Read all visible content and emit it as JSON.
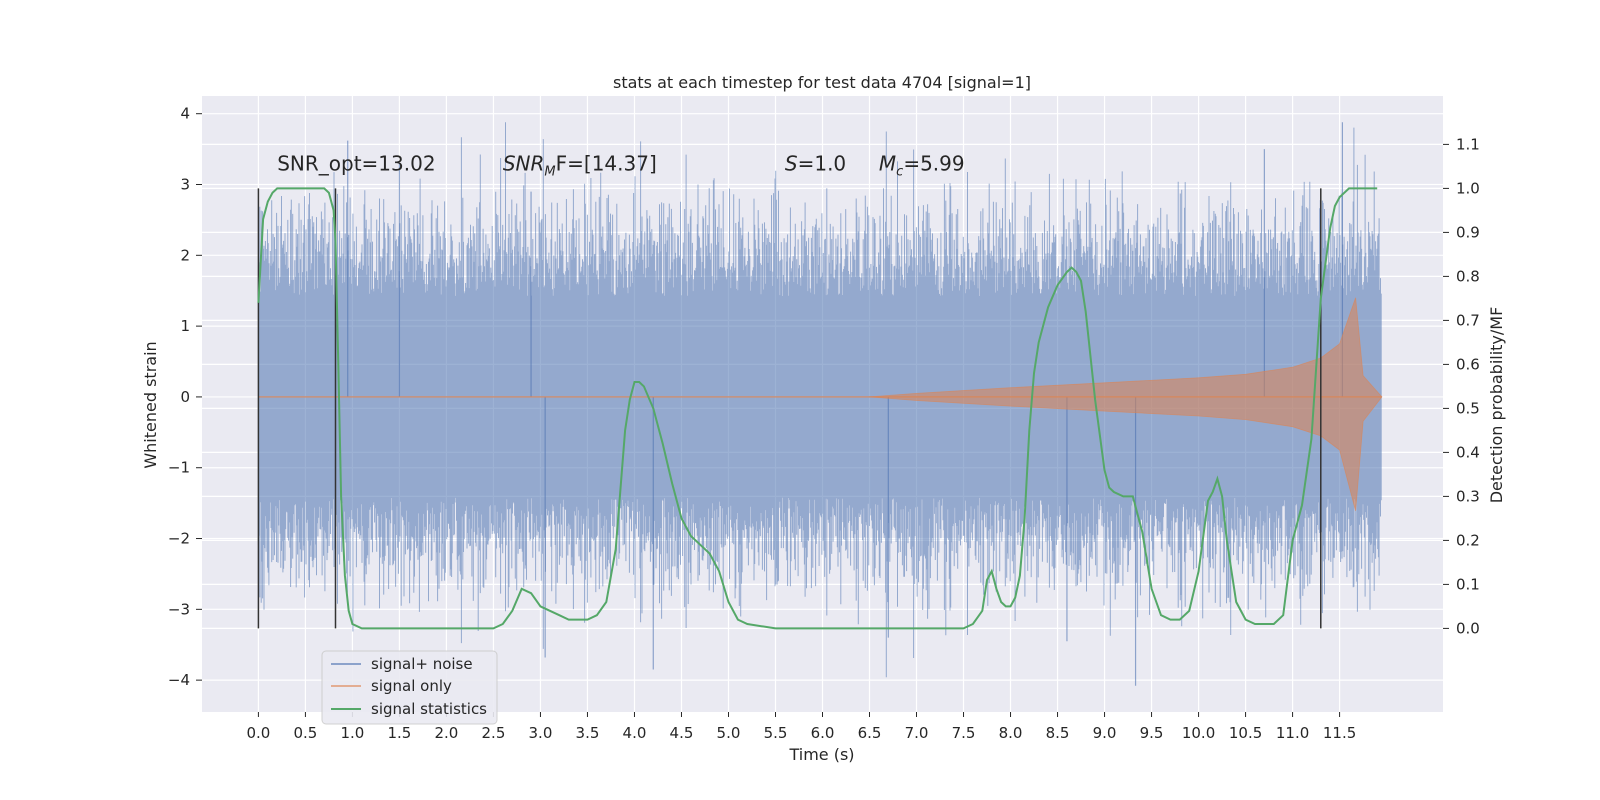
{
  "chart_data": {
    "type": "line",
    "title": "stats at each timestep for test data 4704 [signal=1]",
    "xlabel": "Time (s)",
    "ylabel": "Whitened strain",
    "y2label": "Detection probability/MF",
    "xlim": [
      -0.6,
      12.6
    ],
    "ylim": [
      -4.45,
      4.25
    ],
    "y2lim": [
      -0.19,
      1.21
    ],
    "x_ticks": [
      "0.0",
      "0.5",
      "1.0",
      "1.5",
      "2.0",
      "2.5",
      "3.0",
      "3.5",
      "4.0",
      "4.5",
      "5.0",
      "5.5",
      "6.0",
      "6.5",
      "7.0",
      "7.5",
      "8.0",
      "8.5",
      "9.0",
      "9.5",
      "10.0",
      "10.5",
      "11.0",
      "11.5"
    ],
    "y_ticks": [
      "4",
      "3",
      "2",
      "1",
      "0",
      "−1",
      "−2",
      "−3",
      "−4"
    ],
    "y2_ticks": [
      "1.1",
      "1.0",
      "0.9",
      "0.8",
      "0.7",
      "0.6",
      "0.5",
      "0.4",
      "0.3",
      "0.2",
      "0.1",
      "0.0"
    ],
    "grid": true,
    "legend_placement": "lower-left",
    "annotations": [
      {
        "text": "SNR_opt=13.02",
        "x": 0.2,
        "y": 3.2
      },
      {
        "text": "SNR",
        "sub": "M",
        "rest": "F=[14.37]",
        "x": 2.6,
        "y": 3.2
      },
      {
        "text": "S",
        "rest": "=1.0",
        "x": 5.6,
        "y": 3.2
      },
      {
        "text": "M",
        "sub": "c",
        "rest": "=5.99",
        "x": 6.6,
        "y": 3.2
      }
    ],
    "vlines": [
      0.0,
      0.82,
      11.3
    ],
    "series": [
      {
        "name": "signal+ noise",
        "color": "#4c72b0",
        "x_range": [
          0.0,
          11.95
        ],
        "envelope_mean_abs": 1.9,
        "peak_max": 3.88,
        "peak_min": -4.08
      },
      {
        "name": "signal only",
        "color": "#dd8452",
        "chirp": {
          "start": 6.5,
          "merger": 11.67,
          "end": 11.95,
          "peak": 1.4,
          "envelope": [
            [
              6.5,
              0.0
            ],
            [
              7.0,
              0.05
            ],
            [
              8.0,
              0.13
            ],
            [
              9.0,
              0.2
            ],
            [
              10.0,
              0.27
            ],
            [
              10.5,
              0.32
            ],
            [
              11.0,
              0.42
            ],
            [
              11.3,
              0.55
            ],
            [
              11.5,
              0.75
            ],
            [
              11.67,
              1.4
            ],
            [
              11.75,
              0.3
            ],
            [
              11.95,
              0.0
            ]
          ]
        }
      },
      {
        "name": "signal statistics",
        "color": "#55a868",
        "axis": "right",
        "x": [
          0.0,
          0.05,
          0.1,
          0.15,
          0.2,
          0.3,
          0.4,
          0.5,
          0.6,
          0.7,
          0.75,
          0.8,
          0.82,
          0.85,
          0.88,
          0.92,
          0.96,
          1.0,
          1.1,
          1.3,
          1.6,
          2.0,
          2.3,
          2.5,
          2.6,
          2.7,
          2.8,
          2.9,
          3.0,
          3.1,
          3.2,
          3.3,
          3.4,
          3.5,
          3.6,
          3.7,
          3.8,
          3.9,
          3.95,
          4.0,
          4.05,
          4.1,
          4.2,
          4.3,
          4.4,
          4.5,
          4.6,
          4.7,
          4.8,
          4.9,
          5.0,
          5.1,
          5.2,
          5.5,
          6.0,
          6.5,
          7.0,
          7.5,
          7.6,
          7.7,
          7.75,
          7.8,
          7.85,
          7.9,
          7.95,
          8.0,
          8.05,
          8.1,
          8.15,
          8.2,
          8.25,
          8.3,
          8.4,
          8.5,
          8.6,
          8.65,
          8.7,
          8.75,
          8.8,
          8.9,
          9.0,
          9.05,
          9.1,
          9.2,
          9.3,
          9.4,
          9.5,
          9.6,
          9.7,
          9.8,
          9.9,
          10.0,
          10.1,
          10.15,
          10.2,
          10.25,
          10.3,
          10.4,
          10.5,
          10.6,
          10.7,
          10.8,
          10.9,
          11.0,
          11.1,
          11.2,
          11.3,
          11.4,
          11.45,
          11.5,
          11.6,
          11.7,
          11.8,
          11.9
        ],
        "y": [
          0.74,
          0.93,
          0.97,
          0.99,
          1.0,
          1.0,
          1.0,
          1.0,
          1.0,
          1.0,
          0.99,
          0.95,
          0.88,
          0.6,
          0.3,
          0.12,
          0.04,
          0.01,
          0.0,
          0.0,
          0.0,
          0.0,
          0.0,
          0.0,
          0.01,
          0.04,
          0.09,
          0.08,
          0.05,
          0.04,
          0.03,
          0.02,
          0.02,
          0.02,
          0.03,
          0.06,
          0.18,
          0.45,
          0.52,
          0.56,
          0.56,
          0.55,
          0.5,
          0.42,
          0.33,
          0.25,
          0.21,
          0.19,
          0.17,
          0.13,
          0.06,
          0.02,
          0.01,
          0.0,
          0.0,
          0.0,
          0.0,
          0.0,
          0.01,
          0.04,
          0.11,
          0.13,
          0.09,
          0.06,
          0.05,
          0.05,
          0.07,
          0.12,
          0.25,
          0.45,
          0.58,
          0.65,
          0.73,
          0.78,
          0.81,
          0.82,
          0.81,
          0.79,
          0.72,
          0.52,
          0.36,
          0.32,
          0.31,
          0.3,
          0.3,
          0.22,
          0.09,
          0.03,
          0.02,
          0.02,
          0.04,
          0.13,
          0.29,
          0.31,
          0.34,
          0.3,
          0.2,
          0.06,
          0.02,
          0.01,
          0.01,
          0.01,
          0.03,
          0.2,
          0.28,
          0.43,
          0.75,
          0.91,
          0.96,
          0.98,
          1.0,
          1.0,
          1.0,
          1.0
        ]
      }
    ]
  }
}
